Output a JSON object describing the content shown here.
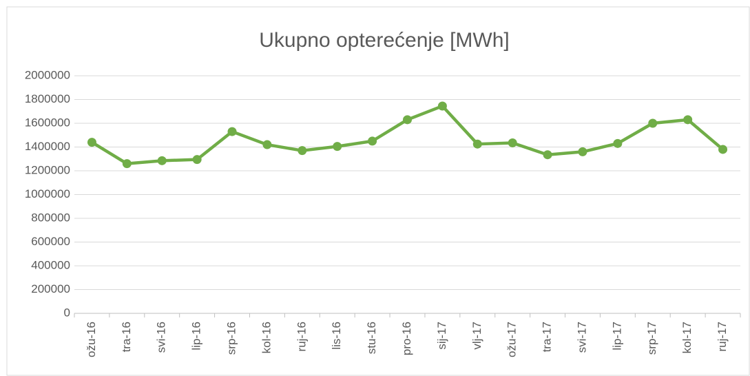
{
  "chart_data": {
    "type": "line",
    "title": "Ukupno opterećenje [MWh]",
    "categories": [
      "ožu-16",
      "tra-16",
      "svi-16",
      "lip-16",
      "srp-16",
      "kol-16",
      "ruj-16",
      "lis-16",
      "stu-16",
      "pro-16",
      "sij-17",
      "vlj-17",
      "ožu-17",
      "tra-17",
      "svi-17",
      "lip-17",
      "srp-17",
      "kol-17",
      "ruj-17"
    ],
    "series": [
      {
        "name": "Ukupno opterećenje [MWh]",
        "color": "#70ad47",
        "values": [
          1440000,
          1260000,
          1285000,
          1295000,
          1530000,
          1420000,
          1370000,
          1405000,
          1450000,
          1630000,
          1745000,
          1425000,
          1435000,
          1335000,
          1360000,
          1430000,
          1600000,
          1630000,
          1380000
        ]
      }
    ],
    "ylim": [
      0,
      2000000
    ],
    "yticks": [
      0,
      200000,
      400000,
      600000,
      800000,
      1000000,
      1200000,
      1400000,
      1600000,
      1800000,
      2000000
    ],
    "grid": true
  }
}
